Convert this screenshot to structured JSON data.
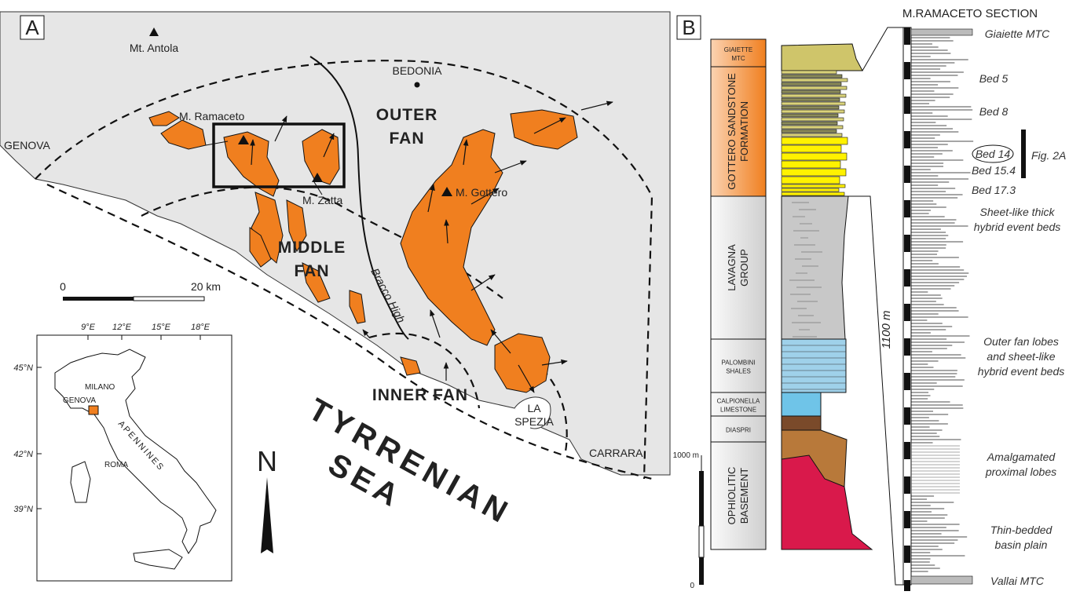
{
  "panel_a": {
    "label": "A",
    "places": {
      "mt_antola": "Mt. Antola",
      "bedonia": "BEDONIA",
      "genova": "GENOVA",
      "m_ramaceto": "M. Ramaceto",
      "m_zatta": "M. Zatta",
      "m_gottero": "M. Gottero",
      "bracco_high": "Bracco High",
      "la_spezia": [
        "LA",
        "SPEZIA"
      ],
      "carrara": "CARRARA"
    },
    "fans": {
      "outer": [
        "OUTER",
        "FAN"
      ],
      "middle": [
        "MIDDLE",
        "FAN"
      ],
      "inner": "INNER FAN"
    },
    "sea": [
      "TYRRENIAN",
      "SEA"
    ],
    "scale": {
      "start": "0",
      "end": "20 km"
    },
    "north": "N",
    "inset": {
      "lon_labels": [
        "9°E",
        "12°E",
        "15°E",
        "18°E"
      ],
      "lat_labels": [
        "45°N",
        "42°N",
        "39°N"
      ],
      "cities": {
        "milano": "MILANO",
        "genova": "GENOVA",
        "roma": "ROMA"
      },
      "range": "APENNINES"
    }
  },
  "panel_b": {
    "label": "B",
    "units": [
      [
        "GIAIETTE",
        "MTC"
      ],
      [
        "GOTTERO SANDSTONE",
        "FORMATION"
      ],
      [
        "LAVAGNA",
        "GROUP"
      ],
      [
        "PALOMBINI",
        "SHALES"
      ],
      [
        "CALPIONELLA",
        "LIMESTONE"
      ],
      [
        "DIASPRI"
      ],
      [
        "OPHIOLITIC",
        "BASEMENT"
      ]
    ],
    "scale": {
      "top": "1000 m",
      "bottom": "0"
    },
    "section_title": "M.RAMACETO SECTION",
    "thickness": "1100 m",
    "beds": [
      "Giaiette MTC",
      "Bed 5",
      "Bed 8",
      "Bed 14",
      "Bed 15.4",
      "Bed 17.3"
    ],
    "fig_ref": "Fig. 2A",
    "facies": [
      [
        "Sheet-like thick",
        "hybrid event beds"
      ],
      [
        "Outer fan lobes",
        "and sheet-like",
        "hybrid event beds"
      ],
      [
        "Amalgamated",
        "proximal lobes"
      ],
      [
        "Thin-bedded",
        "basin plain"
      ]
    ],
    "base": "Vallai MTC"
  }
}
